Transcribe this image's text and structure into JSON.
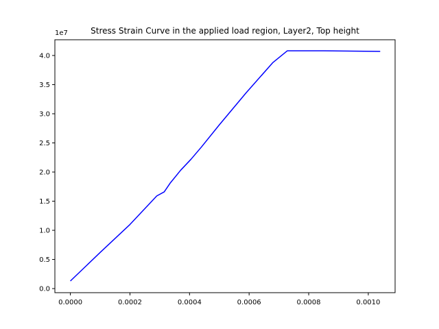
{
  "chart_data": {
    "type": "line",
    "title": "Stress Strain Curve in the applied load region, Layer2, Top height",
    "xlabel": "",
    "ylabel": "",
    "y_offset_label": "1e7",
    "xlim": [
      -5.2e-05,
      0.00109
    ],
    "ylim": [
      -0.07,
      4.27
    ],
    "x_ticks": [
      0.0,
      0.0002,
      0.0004,
      0.0006,
      0.0008,
      0.001
    ],
    "x_tick_labels": [
      "0.0000",
      "0.0002",
      "0.0004",
      "0.0006",
      "0.0008",
      "0.0010"
    ],
    "y_ticks": [
      0.0,
      0.5,
      1.0,
      1.5,
      2.0,
      2.5,
      3.0,
      3.5,
      4.0
    ],
    "y_tick_labels": [
      "0.0",
      "0.5",
      "1.0",
      "1.5",
      "2.0",
      "2.5",
      "3.0",
      "3.5",
      "4.0"
    ],
    "grid": false,
    "series": [
      {
        "color": "#0000ff",
        "x": [
          0.0,
          0.0001,
          0.0002,
          0.00029,
          0.000315,
          0.000335,
          0.00037,
          0.000405,
          0.00044,
          0.0005,
          0.00059,
          0.00068,
          0.000728,
          0.00085,
          0.00104
        ],
        "y": [
          0.13,
          0.62,
          1.1,
          1.59,
          1.66,
          1.81,
          2.03,
          2.22,
          2.43,
          2.81,
          3.36,
          3.88,
          4.08,
          4.08,
          4.07
        ]
      }
    ]
  }
}
